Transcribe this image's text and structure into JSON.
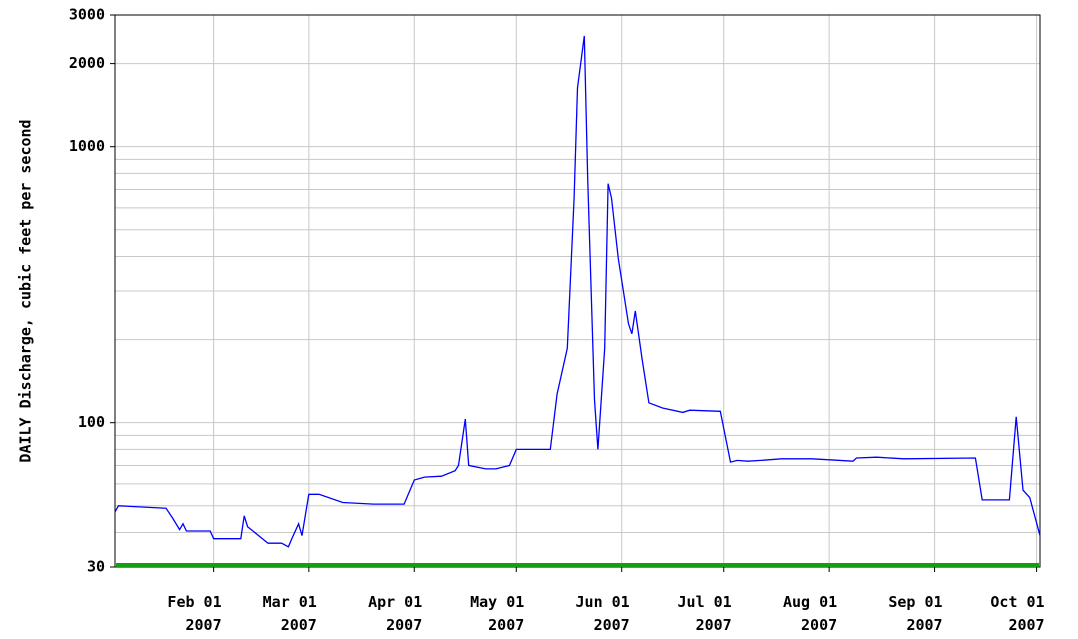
{
  "chart_data": {
    "type": "line",
    "y_label": "DAILY Discharge, cubic feet per second",
    "log_y": true,
    "grid": true,
    "xlim": [
      "2007-01-03",
      "2007-10-02"
    ],
    "ylim": [
      30,
      3000
    ],
    "yticks": [
      30,
      100,
      1000,
      2000,
      3000
    ],
    "yminor": [
      40,
      50,
      60,
      70,
      80,
      90,
      200,
      300,
      400,
      500,
      600,
      700,
      800,
      900
    ],
    "xticks": [
      {
        "value": "2007-02-01",
        "label": "Feb 01 2007"
      },
      {
        "value": "2007-03-01",
        "label": "Mar 01 2007"
      },
      {
        "value": "2007-04-01",
        "label": "Apr 01 2007"
      },
      {
        "value": "2007-05-01",
        "label": "May 01 2007"
      },
      {
        "value": "2007-06-01",
        "label": "Jun 01 2007"
      },
      {
        "value": "2007-07-01",
        "label": "Jul 01 2007"
      },
      {
        "value": "2007-08-01",
        "label": "Aug 01 2007"
      },
      {
        "value": "2007-09-01",
        "label": "Sep 01 2007"
      },
      {
        "value": "2007-10-01",
        "label": "Oct 01 2007"
      }
    ],
    "x": [
      "2007-01-03",
      "2007-01-04",
      "2007-01-18",
      "2007-01-20",
      "2007-01-22",
      "2007-01-23",
      "2007-01-24",
      "2007-01-31",
      "2007-02-01",
      "2007-02-09",
      "2007-02-10",
      "2007-02-11",
      "2007-02-15",
      "2007-02-17",
      "2007-02-21",
      "2007-02-23",
      "2007-02-24",
      "2007-02-26",
      "2007-02-27",
      "2007-03-01",
      "2007-03-04",
      "2007-03-11",
      "2007-03-20",
      "2007-03-29",
      "2007-04-01",
      "2007-04-04",
      "2007-04-09",
      "2007-04-13",
      "2007-04-14",
      "2007-04-16",
      "2007-04-17",
      "2007-04-22",
      "2007-04-25",
      "2007-04-29",
      "2007-05-01",
      "2007-05-05",
      "2007-05-11",
      "2007-05-13",
      "2007-05-16",
      "2007-05-18",
      "2007-05-19",
      "2007-05-21",
      "2007-05-22",
      "2007-05-24",
      "2007-05-25",
      "2007-05-27",
      "2007-05-28",
      "2007-05-29",
      "2007-05-31",
      "2007-06-03",
      "2007-06-04",
      "2007-06-05",
      "2007-06-07",
      "2007-06-09",
      "2007-06-13",
      "2007-06-19",
      "2007-06-21",
      "2007-06-30",
      "2007-07-03",
      "2007-07-05",
      "2007-07-08",
      "2007-07-12",
      "2007-07-18",
      "2007-07-27",
      "2007-08-08",
      "2007-08-09",
      "2007-08-15",
      "2007-08-23",
      "2007-09-13",
      "2007-09-15",
      "2007-09-23",
      "2007-09-25",
      "2007-09-27",
      "2007-09-29",
      "2007-10-02"
    ],
    "series": [
      {
        "color": "#0000ff",
        "values": [
          47.5,
          50,
          49,
          45,
          41,
          43,
          40.5,
          40.5,
          38,
          38,
          46,
          42,
          38.3,
          36.6,
          36.6,
          35.5,
          38,
          43,
          39,
          55,
          55,
          51.4,
          50.7,
          50.7,
          62,
          63.5,
          64,
          67,
          70,
          103,
          70,
          68,
          68,
          70,
          80,
          80,
          80,
          127,
          186,
          651,
          1635,
          2520,
          766,
          121,
          80,
          186,
          735,
          651,
          393,
          228,
          210,
          254,
          170,
          118,
          113,
          109,
          111,
          110,
          72,
          73,
          72.5,
          73,
          74,
          74,
          72.5,
          74.5,
          75,
          74,
          74.5,
          52.5,
          52.5,
          105,
          57,
          53.5,
          39
        ]
      }
    ]
  }
}
